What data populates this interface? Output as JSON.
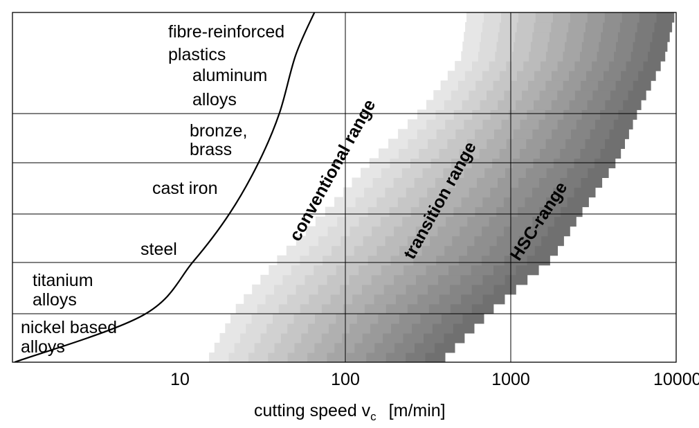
{
  "chart_data": {
    "type": "area",
    "title": "",
    "xlabel": "cutting speed v",
    "xlabel_subscript": "c",
    "xlabel_unit": "[m/min]",
    "ylabel": "",
    "x_scale": "log",
    "xlim": [
      1,
      10000
    ],
    "x_ticks": [
      {
        "value": 10,
        "label": "10"
      },
      {
        "value": 100,
        "label": "100"
      },
      {
        "value": 1000,
        "label": "1000"
      },
      {
        "value": 10000,
        "label": "10000"
      }
    ],
    "materials": [
      {
        "name": "nickel based alloys",
        "lines": [
          "nickel based",
          "alloys"
        ]
      },
      {
        "name": "titanium alloys",
        "lines": [
          "titanium",
          "alloys"
        ]
      },
      {
        "name": "steel",
        "lines": [
          "steel"
        ]
      },
      {
        "name": "cast iron",
        "lines": [
          "cast iron"
        ]
      },
      {
        "name": "bronze, brass",
        "lines": [
          "bronze,",
          "brass"
        ]
      },
      {
        "name": "aluminum alloys",
        "lines": [
          "aluminum",
          "alloys"
        ]
      },
      {
        "name": "fibre-reinforced plastics",
        "lines": [
          "fibre-reinforced",
          "plastics"
        ]
      }
    ],
    "boundary_curve_speed": [
      1,
      6,
      12,
      20,
      30,
      40,
      50,
      65
    ],
    "hsc_range": {
      "lower_speed": [
        15,
        22,
        40,
        80,
        150,
        300,
        500,
        550
      ],
      "upper_speed": [
        400,
        800,
        1800,
        2800,
        4500,
        6000,
        8500,
        10000
      ]
    },
    "zones": [
      {
        "name": "conventional range",
        "label": "conventional range"
      },
      {
        "name": "transition range",
        "label": "transition range"
      },
      {
        "name": "HSC-range",
        "label": "HSC-range"
      }
    ],
    "gray_levels": [
      "#e6e6e6",
      "#dcdcdc",
      "#d1d1d1",
      "#c6c6c6",
      "#bbbbbb",
      "#b0b0b0",
      "#a5a5a5",
      "#9a9a9a",
      "#8f8f8f",
      "#858585",
      "#7a7a7a",
      "#707070"
    ]
  }
}
